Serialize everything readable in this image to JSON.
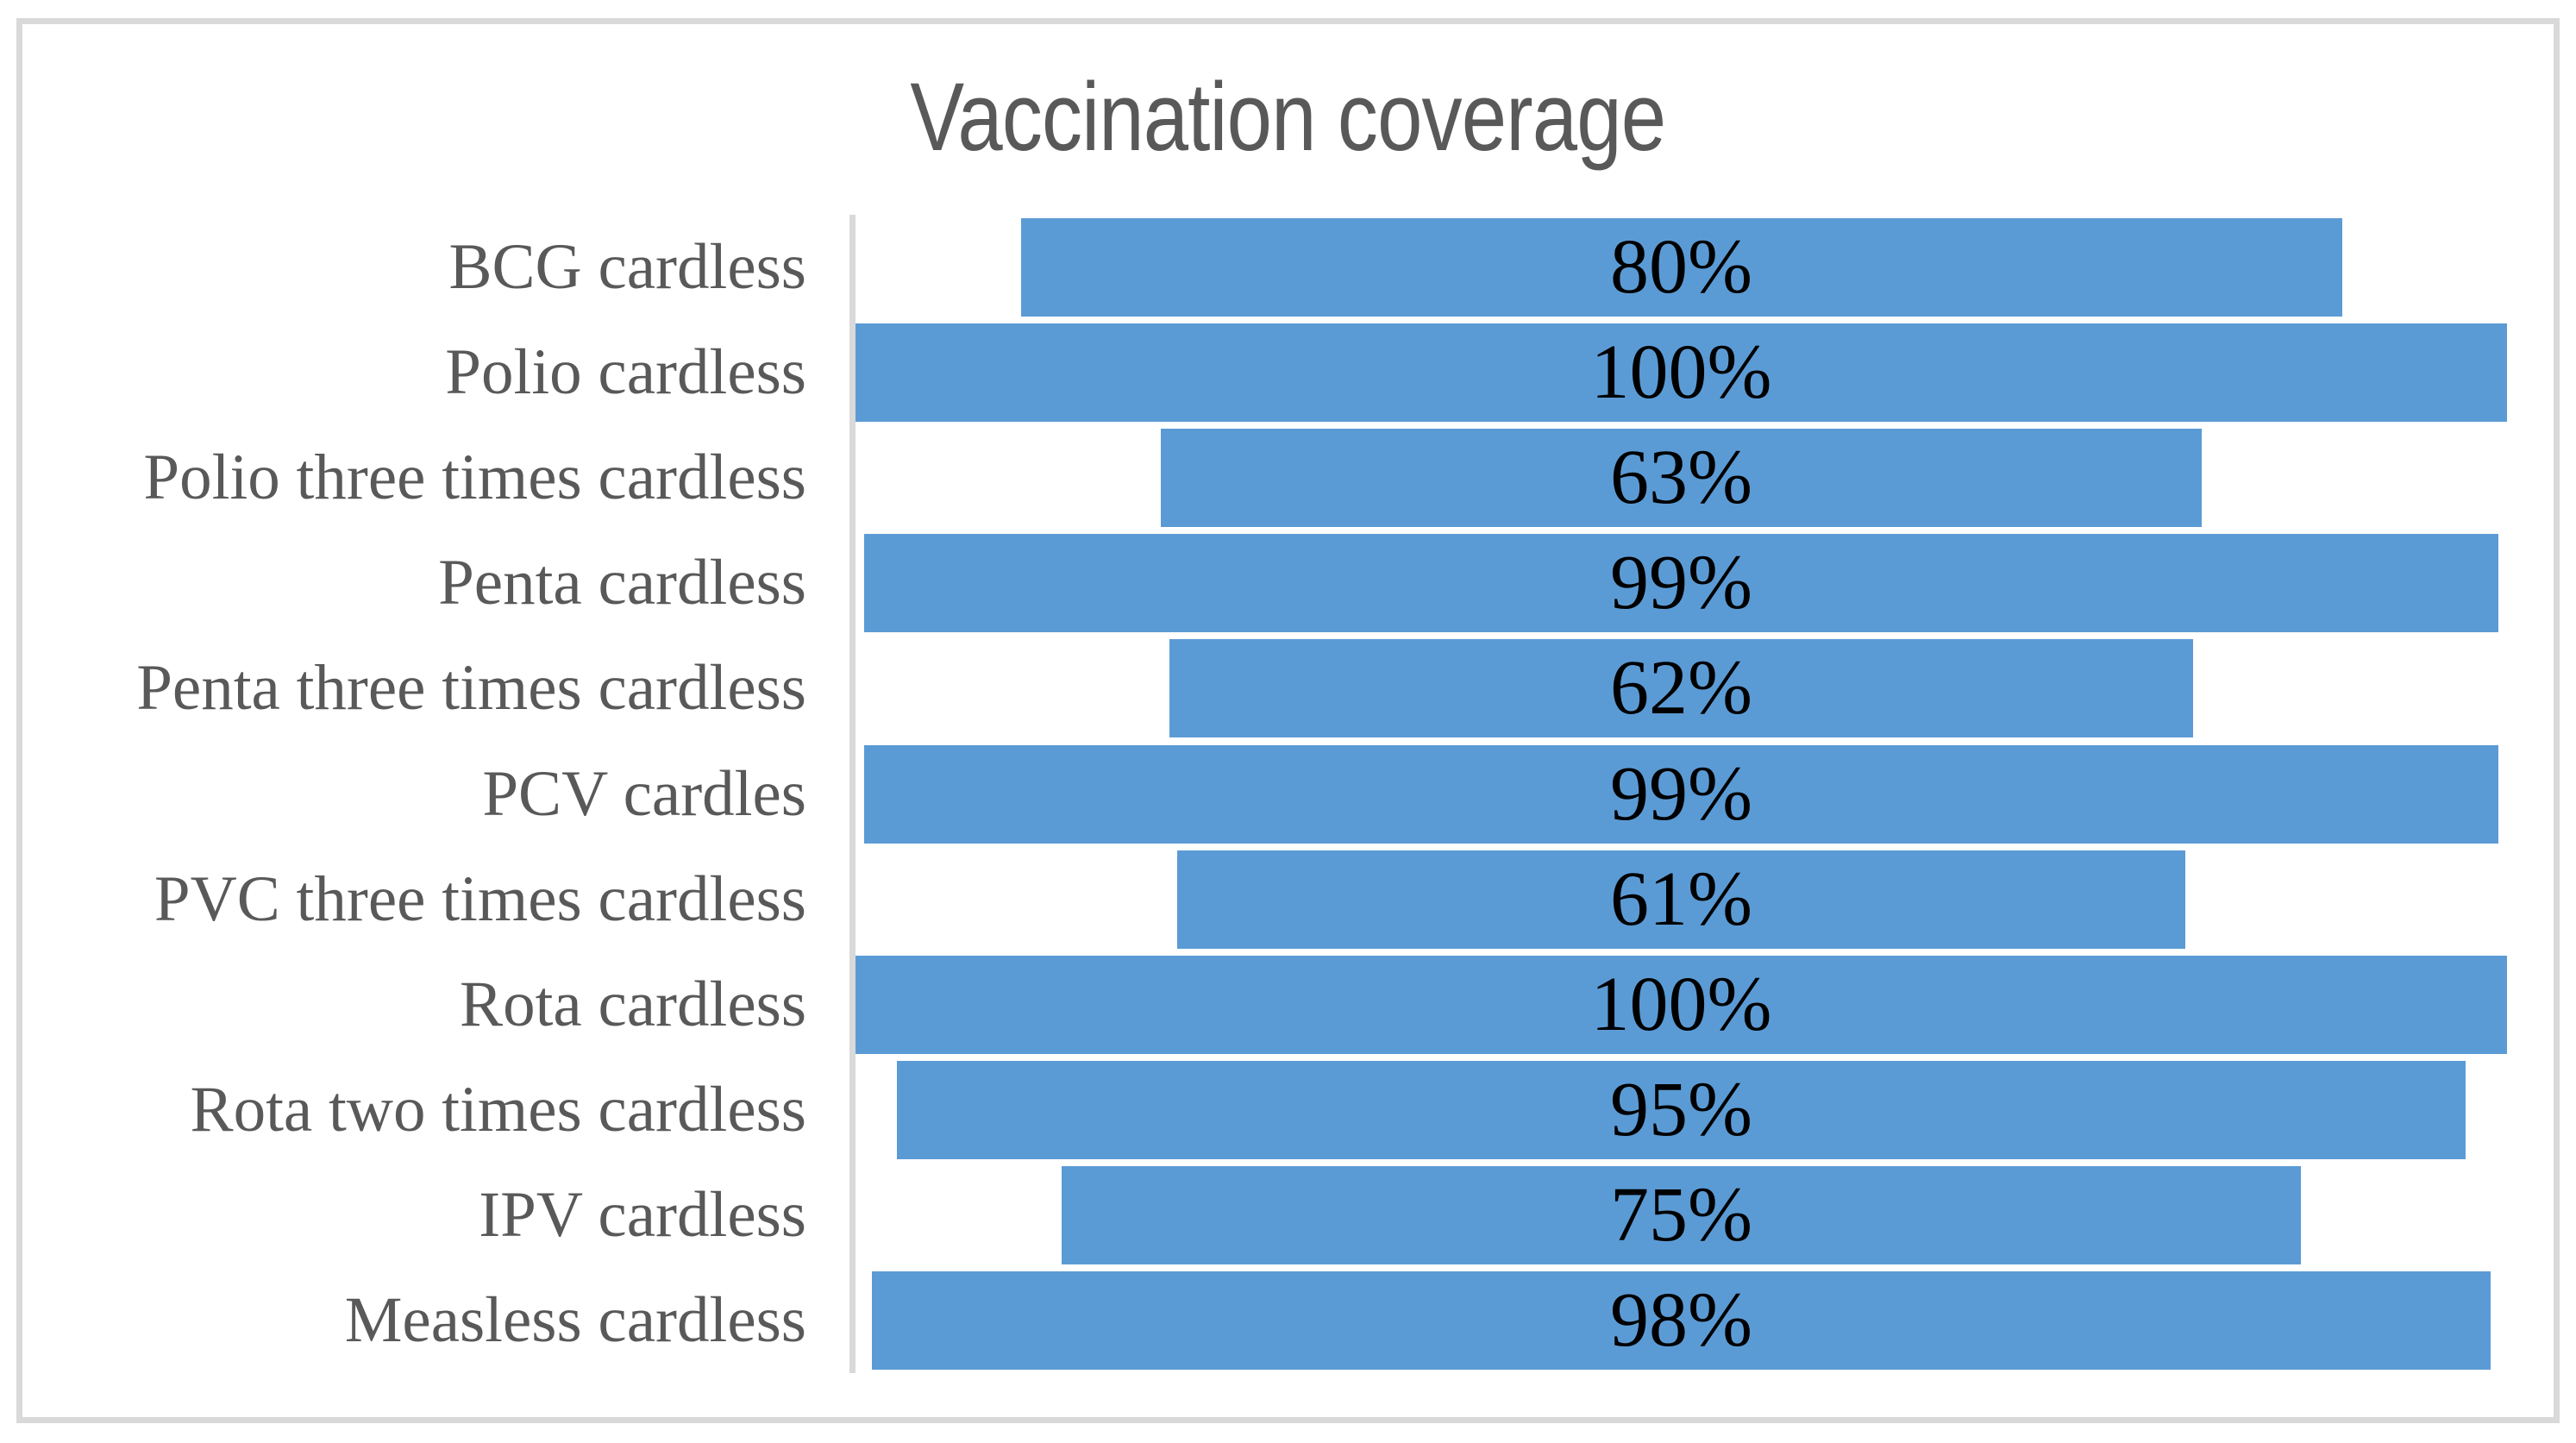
{
  "chart_data": {
    "type": "bar",
    "orientation": "horizontal",
    "style": "funnel-centered-bars",
    "title": "Vaccination coverage",
    "categories": [
      "BCG cardless",
      "Polio cardless",
      "Polio three times cardless",
      "Penta cardless",
      "Penta three times cardless",
      "PCV cardles",
      "PVC three times cardless",
      "Rota cardless",
      "Rota two times cardless",
      "IPV cardless",
      "Measless cardless"
    ],
    "values": [
      80,
      100,
      63,
      99,
      62,
      99,
      61,
      100,
      95,
      75,
      98
    ],
    "value_labels": [
      "80%",
      "100%",
      "63%",
      "99%",
      "62%",
      "99%",
      "61%",
      "100%",
      "95%",
      "75%",
      "98%"
    ],
    "xlabel": "",
    "ylabel": "",
    "xlim": [
      0,
      100
    ],
    "grid": false,
    "legend": "none",
    "data_labels_position": "center-inside-bar",
    "colors": {
      "bar_fill": "#5B9BD5",
      "title_text": "#595959",
      "category_text": "#595959",
      "value_text": "#000000",
      "axis_line": "#D9D9D9",
      "frame_border": "#D9D9D9",
      "background": "#FFFFFF"
    }
  }
}
